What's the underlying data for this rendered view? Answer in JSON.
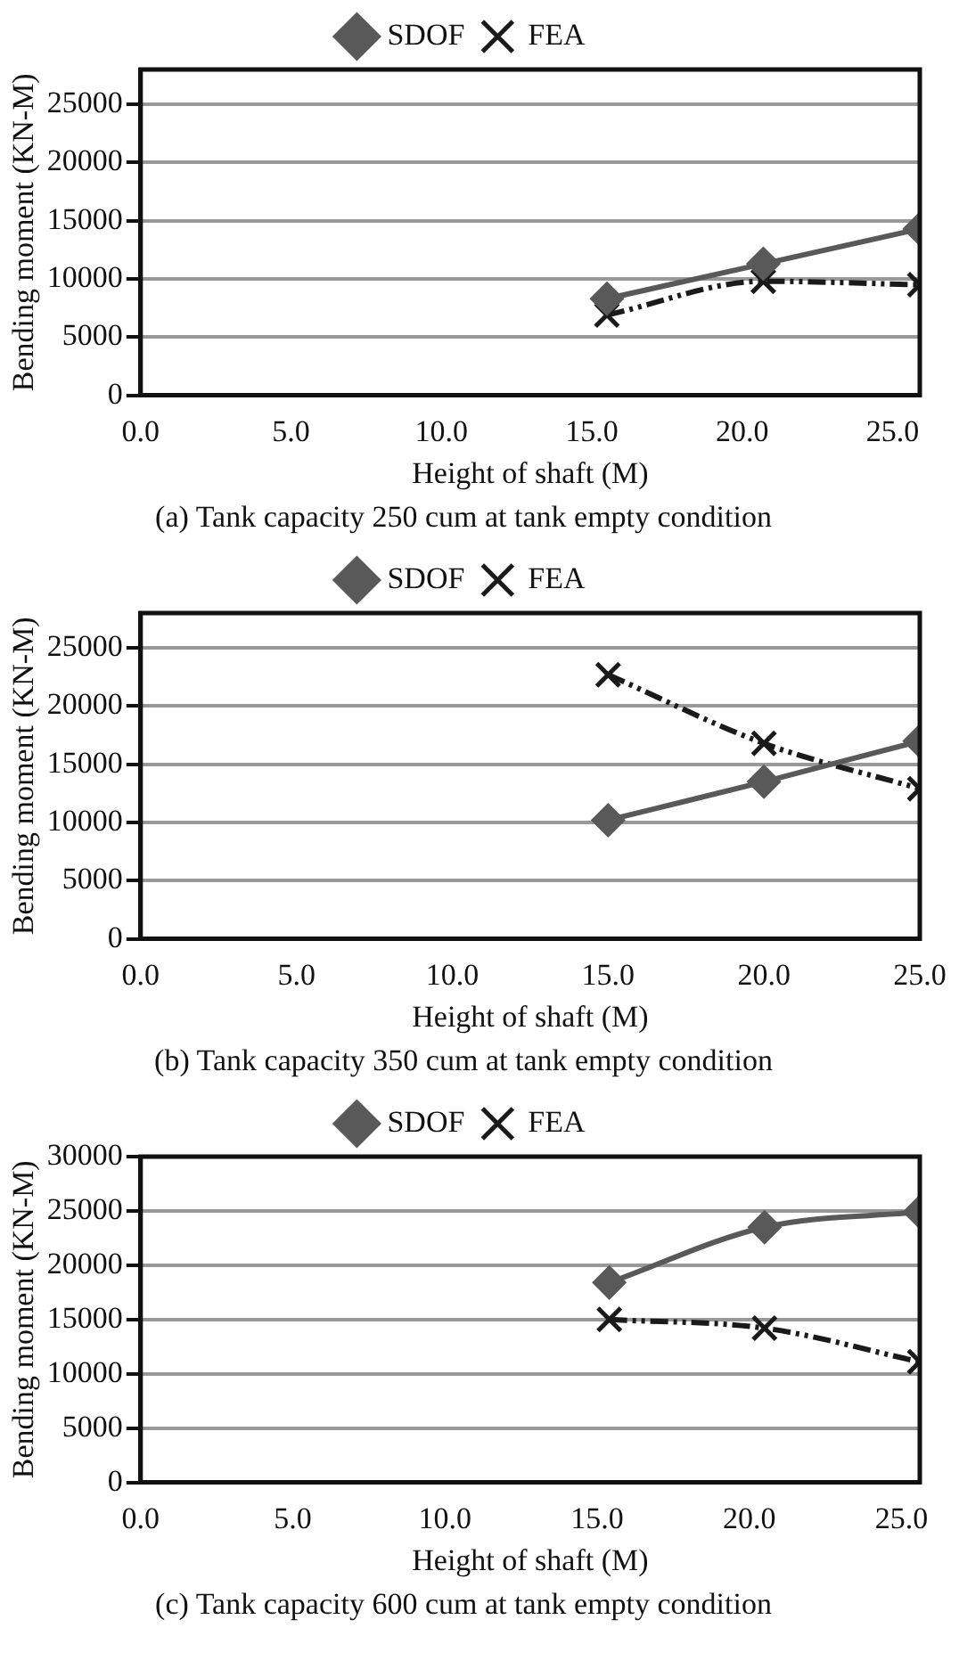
{
  "chart_data": [
    {
      "type": "line",
      "title": "(a) Tank capacity 250 cum at tank empty condition",
      "xlabel": "Height of shaft (M)",
      "ylabel": "Bending moment (KN-M)",
      "xlim": [
        0,
        25.9
      ],
      "xticks": [
        {
          "value": 0,
          "label": "0.0"
        },
        {
          "value": 5,
          "label": "5.0"
        },
        {
          "value": 10,
          "label": "10.0"
        },
        {
          "value": 15,
          "label": "15.0"
        },
        {
          "value": 20,
          "label": "20.0"
        },
        {
          "value": 25,
          "label": "25.0"
        }
      ],
      "ylim": [
        0,
        28000
      ],
      "yticks": [
        0,
        5000,
        10000,
        15000,
        20000,
        25000
      ],
      "grid": "y",
      "legend": "top",
      "series": [
        {
          "name": "SDOF",
          "color": "#595959",
          "marker": "diamond",
          "line_style": "solid",
          "x": [
            15.5,
            20.7,
            25.9
          ],
          "values": [
            8300,
            11300,
            14300
          ]
        },
        {
          "name": "FEA",
          "color": "#1a1a1a",
          "marker": "cross",
          "line_style": "dashed",
          "x": [
            15.5,
            20.7,
            25.9
          ],
          "values": [
            6900,
            9800,
            9500
          ]
        }
      ]
    },
    {
      "type": "line",
      "title": "(b) Tank capacity 350 cum at tank empty condition",
      "xlabel": "Height of shaft (M)",
      "ylabel": "Bending moment (KN-M)",
      "xlim": [
        0,
        25
      ],
      "xticks": [
        {
          "value": 0,
          "label": "0.0"
        },
        {
          "value": 5,
          "label": "5.0"
        },
        {
          "value": 10,
          "label": "10.0"
        },
        {
          "value": 15,
          "label": "15.0"
        },
        {
          "value": 20,
          "label": "20.0"
        },
        {
          "value": 25,
          "label": "25.0"
        }
      ],
      "ylim": [
        0,
        28000
      ],
      "yticks": [
        0,
        5000,
        10000,
        15000,
        20000,
        25000
      ],
      "grid": "y",
      "legend": "top",
      "series": [
        {
          "name": "SDOF",
          "color": "#595959",
          "marker": "diamond",
          "line_style": "solid",
          "x": [
            15,
            20,
            25
          ],
          "values": [
            10200,
            13500,
            17000
          ]
        },
        {
          "name": "FEA",
          "color": "#1a1a1a",
          "marker": "cross",
          "line_style": "dashed",
          "x": [
            15,
            20,
            25
          ],
          "values": [
            22700,
            16800,
            12900
          ]
        }
      ]
    },
    {
      "type": "line",
      "title": "(c) Tank capacity 600 cum at tank empty condition",
      "xlabel": "Height of shaft (M)",
      "ylabel": "Bending moment (KN-M)",
      "xlim": [
        0,
        25.6
      ],
      "xticks": [
        {
          "value": 0,
          "label": "0.0"
        },
        {
          "value": 5,
          "label": "5.0"
        },
        {
          "value": 10,
          "label": "10.0"
        },
        {
          "value": 15,
          "label": "15.0"
        },
        {
          "value": 20,
          "label": "20.0"
        },
        {
          "value": 25,
          "label": "25.0"
        }
      ],
      "ylim": [
        0,
        30000
      ],
      "yticks": [
        0,
        5000,
        10000,
        15000,
        20000,
        25000,
        30000
      ],
      "grid": "y",
      "legend": "top",
      "series": [
        {
          "name": "SDOF",
          "color": "#595959",
          "marker": "diamond",
          "line_style": "solid",
          "x": [
            15.4,
            20.5,
            25.6
          ],
          "values": [
            18400,
            23500,
            24900
          ]
        },
        {
          "name": "FEA",
          "color": "#1a1a1a",
          "marker": "cross",
          "line_style": "dashed",
          "x": [
            15.4,
            20.5,
            25.6
          ],
          "values": [
            15000,
            14200,
            11100
          ]
        }
      ]
    }
  ]
}
